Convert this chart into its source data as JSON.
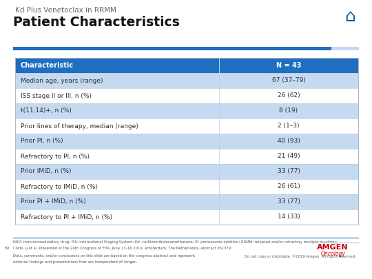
{
  "title_small": "Kd Plus Venetoclax in RRMM",
  "title_large": "Patient Characteristics",
  "header_row": [
    "Characteristic",
    "N = 43"
  ],
  "rows": [
    [
      "Median age, years (range)",
      "67 (37–79)"
    ],
    [
      "ISS stage II or III, n (%)",
      "26 (62)"
    ],
    [
      "t(11;14)+, n (%)",
      "8 (19)"
    ],
    [
      "Prior lines of therapy, median (range)",
      "2 (1–3)"
    ],
    [
      "Prior PI, n (%)",
      "40 (93)"
    ],
    [
      "Refractory to PI, n (%)",
      "21 (49)"
    ],
    [
      "Prior IMiD, n (%)",
      "33 (77)"
    ],
    [
      "Refractory to IMiD, n (%)",
      "26 (61)"
    ],
    [
      "Prior PI + IMiD, n (%)",
      "33 (77)"
    ],
    [
      "Refractory to PI + IMiD, n (%)",
      "14 (33)"
    ]
  ],
  "shaded_rows": [
    0,
    2,
    4,
    6,
    8
  ],
  "header_bg": "#1F6EBF",
  "header_text": "#FFFFFF",
  "shaded_bg": "#C5D9F1",
  "white_bg": "#FFFFFF",
  "table_border_color": "#B8C9D9",
  "title_bar_blue": "#1F6EBF",
  "title_bar_light": "#C5D9F1",
  "bg_color": "#FFFFFF",
  "home_icon_color": "#1F5C9E",
  "amgen_color": "#CC0000",
  "text_dark": "#2F2F2F",
  "text_gray": "#666666",
  "footer_line_color": "#1F6EBF",
  "footer_text1": "IMiD: immunomodulatory drug; ISS: International Staging System; Kd: carfilzomib/dexamethasone; PI: proteasome inhibitor; RRMM: relapsed and/or refractory multiple myeloma",
  "footer_text2": "Costa LJ et al. Presented at the 24th Congress of EHA, June 13–16 2019, Amsterdam, The Netherlands. Abstract PS1379",
  "footer_text3": "Data, comments, and/or conclusions on this slide are based on the congress abstract and represent",
  "footer_text4": "editorial findings and presentations that are independent of Amgen",
  "footer_text5": "Do not copy or distribute. ©2019 Amgen. All rights reserved.",
  "page_num": "82",
  "fig_width": 5.4,
  "fig_height": 4.05,
  "dpi": 100
}
